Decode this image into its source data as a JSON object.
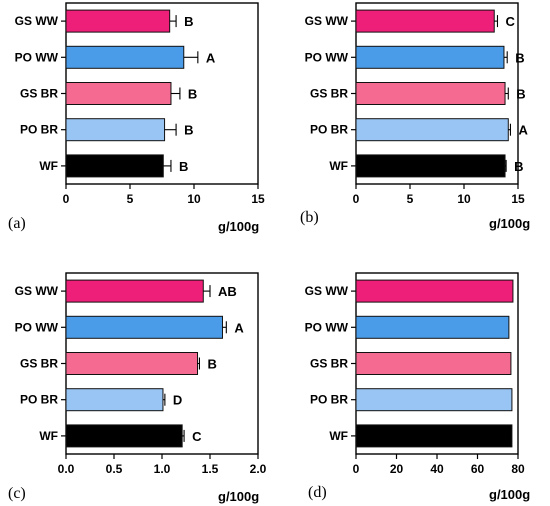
{
  "colors": {
    "GS WW": "#ee1f78",
    "PO WW": "#4a9be8",
    "GS BR": "#f46a90",
    "PO BR": "#99c5f5",
    "WF": "#000000"
  },
  "chart_data": [
    {
      "type": "bar",
      "orientation": "horizontal",
      "panel_label": "(a)",
      "xlabel": "g/100g",
      "xlim": [
        0,
        15
      ],
      "xticks": [
        "0",
        "5",
        "10",
        "15"
      ],
      "categories": [
        "GS WW",
        "PO WW",
        "GS BR",
        "PO BR",
        "WF"
      ],
      "values": [
        8.1,
        9.2,
        8.2,
        7.7,
        7.6
      ],
      "errors": [
        0.5,
        1.1,
        0.7,
        0.9,
        0.6
      ],
      "annotations": [
        "B",
        "A",
        "B",
        "B",
        "B"
      ]
    },
    {
      "type": "bar",
      "orientation": "horizontal",
      "panel_label": "(b)",
      "xlabel": "g/100g",
      "xlim": [
        0,
        15
      ],
      "xticks": [
        "0",
        "5",
        "10",
        "15"
      ],
      "categories": [
        "GS WW",
        "PO WW",
        "GS BR",
        "PO BR",
        "WF"
      ],
      "values": [
        12.8,
        13.7,
        13.8,
        14.1,
        13.8
      ],
      "errors": [
        0.3,
        0.3,
        0.3,
        0.2,
        0.1
      ],
      "annotations": [
        "C",
        "B",
        "B",
        "A",
        "B"
      ]
    },
    {
      "type": "bar",
      "orientation": "horizontal",
      "panel_label": "(c)",
      "xlabel": "g/100g",
      "xlim": [
        0,
        2.0
      ],
      "xticks": [
        "0.0",
        "0.5",
        "1.0",
        "1.5",
        "2.0"
      ],
      "categories": [
        "GS WW",
        "PO WW",
        "GS BR",
        "PO BR",
        "WF"
      ],
      "values": [
        1.43,
        1.63,
        1.37,
        1.01,
        1.21
      ],
      "errors": [
        0.07,
        0.04,
        0.02,
        0.02,
        0.02
      ],
      "annotations": [
        "AB",
        "A",
        "B",
        "D",
        "C"
      ]
    },
    {
      "type": "bar",
      "orientation": "horizontal",
      "panel_label": "(d)",
      "xlabel": "g/100g",
      "xlim": [
        0,
        80
      ],
      "xticks": [
        "0",
        "20",
        "40",
        "60",
        "80"
      ],
      "categories": [
        "GS WW",
        "PO WW",
        "GS BR",
        "PO BR",
        "WF"
      ],
      "values": [
        77.5,
        75.5,
        76.5,
        77,
        77
      ],
      "errors": [
        0,
        0,
        0,
        0,
        0
      ],
      "annotations": [
        "",
        "",
        "",
        "",
        ""
      ]
    }
  ]
}
